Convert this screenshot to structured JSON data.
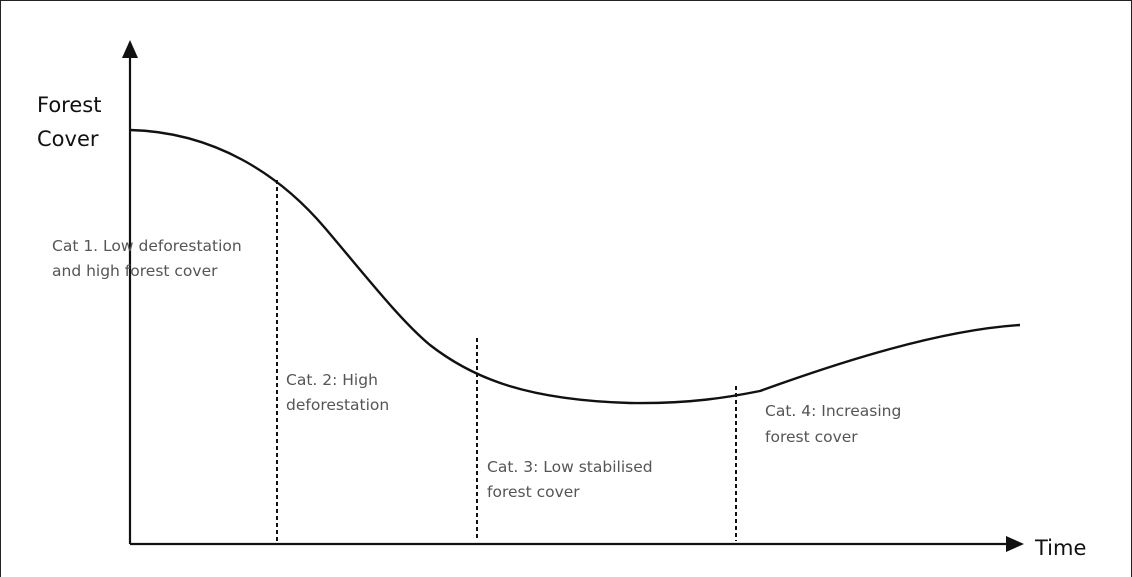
{
  "axes": {
    "y_label_line1": "Forest",
    "y_label_line2": "Cover",
    "x_label": "Time"
  },
  "categories": [
    {
      "line1": "Cat 1. Low deforestation",
      "line2": "and high forest cover"
    },
    {
      "line1": "Cat. 2: High",
      "line2": "deforestation"
    },
    {
      "line1": "Cat. 3: Low stabilised",
      "line2": "forest cover"
    },
    {
      "line1": "Cat. 4: Increasing",
      "line2": "forest cover"
    }
  ],
  "colors": {
    "curve": "#111111",
    "axis": "#111111",
    "divider": "#111111",
    "label": "#555555"
  }
}
